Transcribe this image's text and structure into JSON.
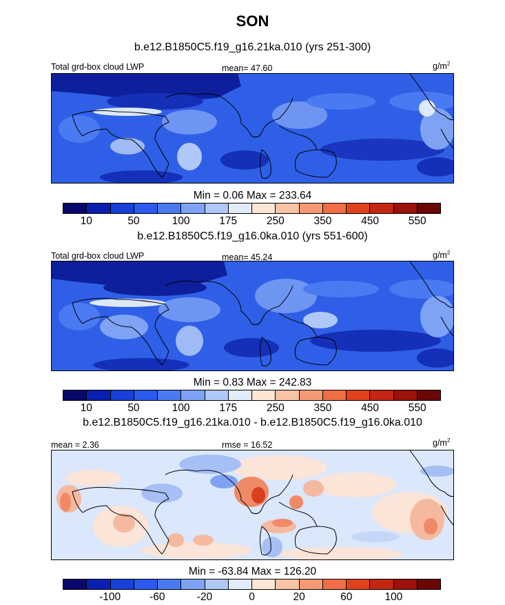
{
  "title": "SON",
  "panels": [
    {
      "subtitle": "b.e12.B1850C5.f19_g16.21ka.010 (yrs 251-300)",
      "left_label": "Total grd-box cloud LWP",
      "center_label": "mean=  47.60",
      "units_base": "g/m",
      "units_exp": "2",
      "minmax": "Min =   0.06 Max = 233.64",
      "colorbar": {
        "colors": [
          "#08086b",
          "#0a1fb0",
          "#1840d8",
          "#2a5af0",
          "#4a7af2",
          "#7ea3f5",
          "#b0c8f7",
          "#e2ecfb",
          "#fce6d6",
          "#f9c3a6",
          "#f59a74",
          "#ef6e45",
          "#e0421e",
          "#c32612",
          "#9c1109",
          "#6a0606"
        ],
        "labels": [
          "10",
          "50",
          "100",
          "175",
          "250",
          "350",
          "450",
          "550"
        ]
      }
    },
    {
      "subtitle": "b.e12.B1850C5.f19_g16.0ka.010 (yrs 551-600)",
      "left_label": "Total grd-box cloud LWP",
      "center_label": "mean=  45.24",
      "units_base": "g/m",
      "units_exp": "2",
      "minmax": "Min =   0.83 Max = 242.83",
      "colorbar": {
        "colors": [
          "#08086b",
          "#0a1fb0",
          "#1840d8",
          "#2a5af0",
          "#4a7af2",
          "#7ea3f5",
          "#b0c8f7",
          "#e2ecfb",
          "#fce6d6",
          "#f9c3a6",
          "#f59a74",
          "#ef6e45",
          "#e0421e",
          "#c32612",
          "#9c1109",
          "#6a0606"
        ],
        "labels": [
          "10",
          "50",
          "100",
          "175",
          "250",
          "350",
          "450",
          "550"
        ]
      }
    },
    {
      "subtitle": "b.e12.B1850C5.f19_g16.21ka.010 - b.e12.B1850C5.f19_g16.0ka.010",
      "left_label": "mean =   2.36",
      "center_label": "rmse =  16.52",
      "units_base": "g/m",
      "units_exp": "2",
      "minmax": "Min = -63.84 Max = 126.20",
      "colorbar": {
        "colors": [
          "#08086b",
          "#0a1fb0",
          "#1840d8",
          "#2a5af0",
          "#4a7af2",
          "#7ea3f5",
          "#b0c8f7",
          "#e2ecfb",
          "#fce6d6",
          "#f9c3a6",
          "#f59a74",
          "#ef6e45",
          "#e0421e",
          "#c32612",
          "#9c1109",
          "#6a0606"
        ],
        "labels": [
          "-100",
          "-60",
          "-20",
          "0",
          "20",
          "60",
          "100"
        ]
      }
    }
  ],
  "colors": {
    "base_blue": "#2f5fe6",
    "deep_blue": "#0d1f9c",
    "light_blue": "#9fbaf4",
    "pale_blue": "#dce8fb",
    "diff_base": "#dbe7fb",
    "diff_red": "#f08a66",
    "diff_deep_red": "#d8401f",
    "coast": "#000000"
  }
}
